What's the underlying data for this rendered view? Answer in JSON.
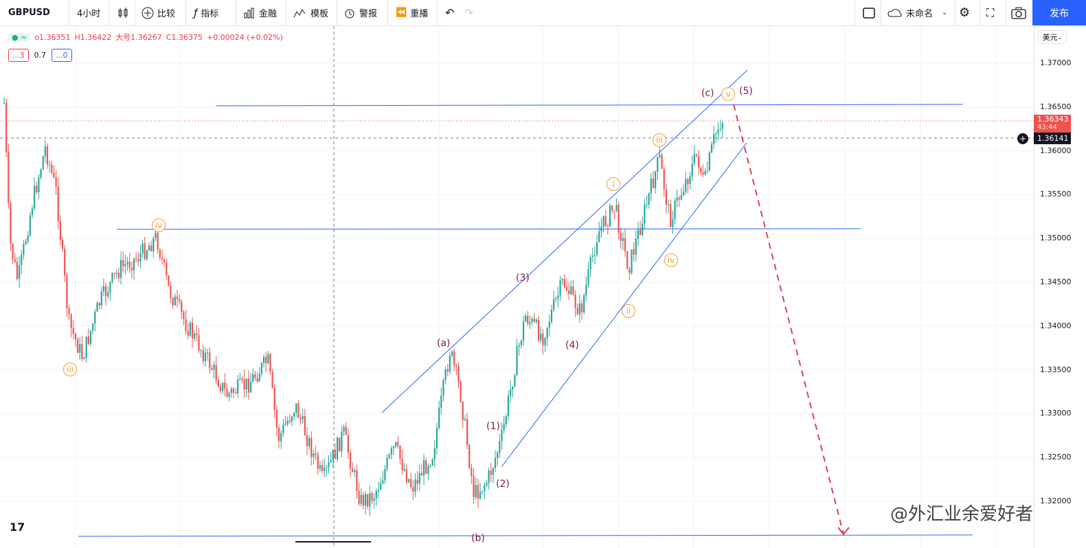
{
  "toolbar": {
    "symbol": "GBPUSD",
    "interval": "4小时",
    "compare": "比较",
    "indicators": "指标",
    "finance": "金融",
    "templates": "模板",
    "alerts": "警报",
    "replay": "重播",
    "layout_name": "未命名",
    "publish": "发布"
  },
  "legend": {
    "open": "o1.36351",
    "high": "H1.36422",
    "low": "大号1.36267",
    "close": "C1.36375",
    "change": "+0.00024 (+0.02%)",
    "indicator_a": "...3",
    "indicator_value": "0.7",
    "indicator_b": "...0"
  },
  "price_axis": {
    "currency": "美元",
    "labels": [
      "1.37000",
      "1.36500",
      "1.36000",
      "1.35500",
      "1.35000",
      "1.34500",
      "1.34000",
      "1.33500",
      "1.33000",
      "1.32500",
      "1.32000"
    ],
    "current_price": "1.36343",
    "countdown": "43:44",
    "crosshair_price": "1.36141"
  },
  "waves": {
    "iii": "iii",
    "iv": "iv",
    "a": "(a)",
    "b": "(b)",
    "c": "(c)",
    "w1": "(1)",
    "w2": "(2)",
    "w3": "(3)",
    "w4": "(4)",
    "w5": "(5)",
    "i": "i",
    "ii": "ii",
    "iii2": "iii",
    "iv2": "iv",
    "v": "v"
  },
  "watermark": "@外汇业余爱好者",
  "colors": {
    "up": "#26a69a",
    "down": "#ef5350",
    "line": "#2962ff",
    "wave": "#7b1a4f",
    "subwave": "#f0a030",
    "arrow": "#e04050"
  }
}
